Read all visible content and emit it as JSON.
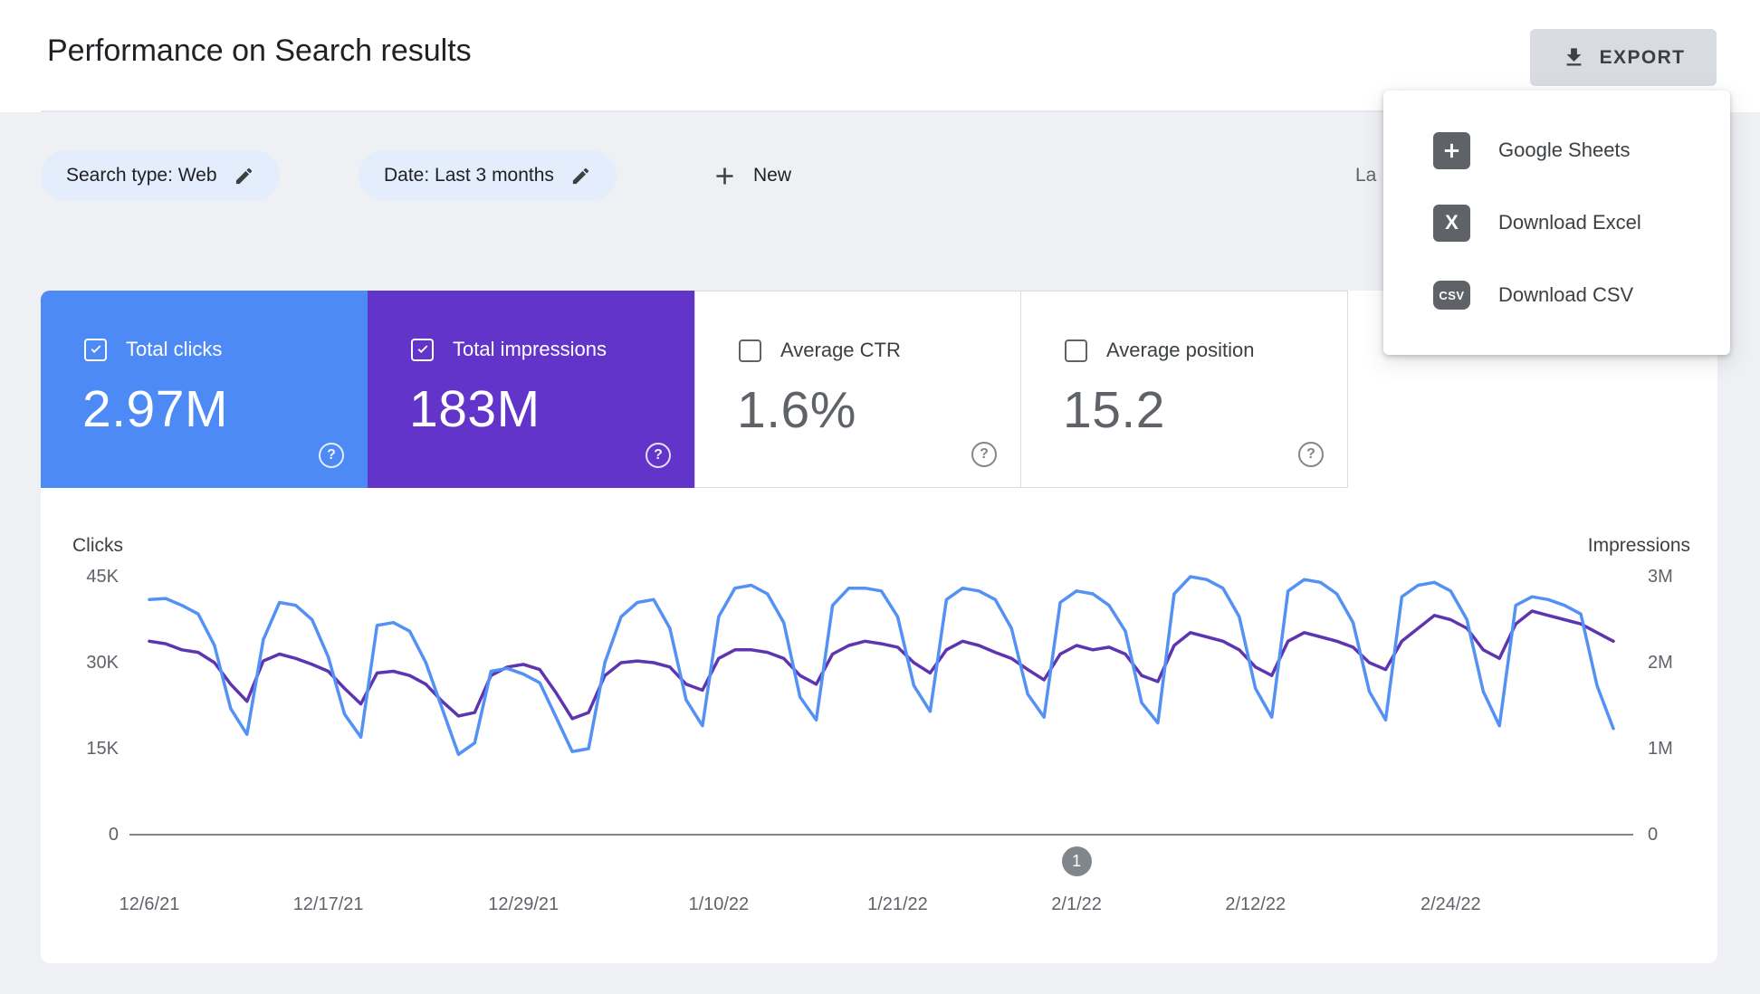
{
  "page": {
    "title": "Performance on Search results"
  },
  "toolbar": {
    "export_label": "EXPORT"
  },
  "export_menu": {
    "items": [
      {
        "label": "Google Sheets",
        "icon": "google-sheets-icon"
      },
      {
        "label": "Download Excel",
        "icon": "excel-icon",
        "icon_text": "X"
      },
      {
        "label": "Download CSV",
        "icon": "csv-icon",
        "icon_text": "CSV"
      }
    ]
  },
  "filters": {
    "search_type": "Search type: Web",
    "date": "Date: Last 3 months",
    "new_label": "New",
    "last_updated_partial": "La"
  },
  "metrics": [
    {
      "label": "Total clicks",
      "value": "2.97M",
      "selected": true,
      "color": "#4d8af5"
    },
    {
      "label": "Total impressions",
      "value": "183M",
      "selected": true,
      "color": "#6334c9"
    },
    {
      "label": "Average CTR",
      "value": "1.6%",
      "selected": false
    },
    {
      "label": "Average position",
      "value": "15.2",
      "selected": false
    }
  ],
  "help_glyph": "?",
  "chart_data": {
    "type": "line",
    "left_axis": {
      "label": "Clicks",
      "ticks": [
        "45K",
        "30K",
        "15K",
        "0"
      ],
      "max": 45,
      "unit": "K"
    },
    "right_axis": {
      "label": "Impressions",
      "ticks": [
        "3M",
        "2M",
        "1M",
        "0"
      ],
      "max": 3,
      "unit": "M"
    },
    "x_ticks": [
      {
        "label": "12/6/21",
        "index": 0
      },
      {
        "label": "12/17/21",
        "index": 11
      },
      {
        "label": "12/29/21",
        "index": 23
      },
      {
        "label": "1/10/22",
        "index": 35
      },
      {
        "label": "1/21/22",
        "index": 46
      },
      {
        "label": "2/1/22",
        "index": 57
      },
      {
        "label": "2/12/22",
        "index": 68
      },
      {
        "label": "2/24/22",
        "index": 80
      }
    ],
    "marker": {
      "label": "1",
      "index": 57
    },
    "grid": false,
    "series": [
      {
        "name": "Total clicks",
        "color": "#5491f5",
        "unit": "K",
        "axis_max": 45,
        "values": [
          41,
          41.2,
          40,
          38.5,
          33,
          22,
          17.5,
          34,
          40.5,
          40,
          37.5,
          31,
          21,
          17,
          36.5,
          37,
          35.5,
          30,
          22,
          14,
          16,
          28.5,
          29,
          28,
          26.5,
          20.5,
          14.5,
          15,
          30,
          38,
          40.5,
          41,
          36,
          23.5,
          19,
          38,
          43,
          43.5,
          42,
          37,
          24,
          20,
          40,
          43,
          43,
          42.5,
          38,
          26,
          21.5,
          41,
          43,
          42.5,
          41,
          36,
          24.5,
          20.5,
          40.5,
          42.5,
          42,
          40,
          35.5,
          23,
          19.5,
          42,
          45,
          44.5,
          43,
          38,
          25.5,
          20.5,
          42.5,
          44.5,
          44,
          42,
          37,
          25,
          20,
          41.5,
          43.5,
          44,
          42.5,
          37.5,
          25,
          19,
          40,
          41.5,
          41,
          40,
          38.5,
          26,
          18.5
        ]
      },
      {
        "name": "Total impressions",
        "color": "#5e35b1",
        "unit": "M",
        "axis_max": 3,
        "values": [
          2.25,
          2.22,
          2.15,
          2.12,
          2.0,
          1.75,
          1.55,
          2.02,
          2.1,
          2.05,
          1.98,
          1.9,
          1.7,
          1.52,
          1.88,
          1.9,
          1.85,
          1.75,
          1.55,
          1.38,
          1.42,
          1.85,
          1.95,
          1.98,
          1.92,
          1.65,
          1.35,
          1.42,
          1.85,
          2.0,
          2.02,
          2.0,
          1.95,
          1.75,
          1.68,
          2.05,
          2.15,
          2.15,
          2.12,
          2.05,
          1.85,
          1.75,
          2.1,
          2.2,
          2.25,
          2.22,
          2.18,
          2.0,
          1.88,
          2.15,
          2.25,
          2.2,
          2.12,
          2.05,
          1.92,
          1.8,
          2.1,
          2.2,
          2.15,
          2.18,
          2.1,
          1.85,
          1.78,
          2.2,
          2.35,
          2.3,
          2.25,
          2.15,
          1.95,
          1.85,
          2.25,
          2.35,
          2.3,
          2.25,
          2.18,
          2.0,
          1.92,
          2.25,
          2.4,
          2.55,
          2.5,
          2.4,
          2.15,
          2.05,
          2.45,
          2.6,
          2.55,
          2.5,
          2.45,
          2.35,
          2.25
        ]
      }
    ]
  }
}
